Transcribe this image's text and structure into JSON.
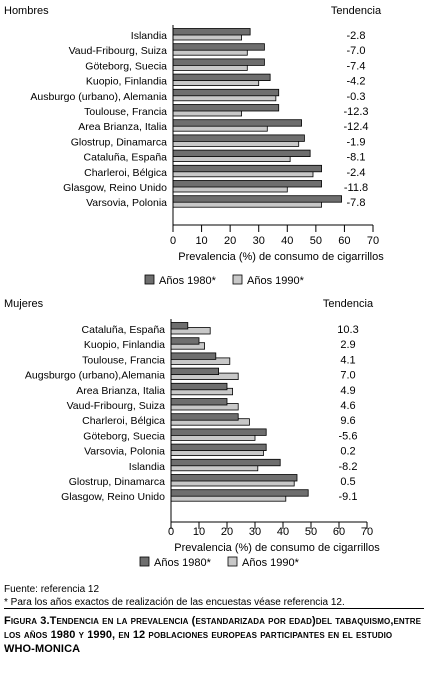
{
  "colors": {
    "bar1980": "#6e6e6e",
    "bar1990": "#c8c8c8",
    "stroke": "#000000"
  },
  "chart_data": [
    {
      "type": "bar",
      "orientation": "horizontal",
      "panel_label": "Hombres",
      "trend_header": "Tendencia",
      "categories": [
        "Islandia",
        "Vaud-Fribourg, Suiza",
        "Göteborg, Suecia",
        "Kuopio, Finlandia",
        "Ausburgo (urbano), Alemania",
        "Toulouse, Francia",
        "Area Brianza, Italia",
        "Glostrup, Dinamarca",
        "Cataluña, España",
        "Charleroi, Bélgica",
        "Glasgow, Reino Unido",
        "Varsovia, Polonia"
      ],
      "series": [
        {
          "name": "Años 1980*",
          "values": [
            27,
            32,
            32,
            34,
            37,
            37,
            45,
            46,
            48,
            52,
            52,
            59
          ]
        },
        {
          "name": "Años 1990*",
          "values": [
            24,
            26,
            26,
            30,
            36,
            24,
            33,
            44,
            41,
            49,
            40,
            52
          ]
        }
      ],
      "trend": [
        "-2.8",
        "-7.0",
        "-7.4",
        "-4.2",
        "-0.3",
        "-12.3",
        "-12.4",
        "-1.9",
        "-8.1",
        "-2.4",
        "-11.8",
        "-7.8"
      ],
      "xlabel": "Prevalencia (%) de consumo de cigarrillos",
      "xlim": [
        0,
        70
      ],
      "xticks": [
        0,
        10,
        20,
        30,
        40,
        50,
        60,
        70
      ],
      "legend": [
        "Años 1980*",
        "Años 1990*"
      ],
      "legend_position": "bottom"
    },
    {
      "type": "bar",
      "orientation": "horizontal",
      "panel_label": "Mujeres",
      "trend_header": "Tendencia",
      "categories": [
        "Cataluña, España",
        "Kuopio, Finlandia",
        "Toulouse, Francia",
        "Augsburgo (urbano),Alemania",
        "Area Brianza, Italia",
        "Vaud-Fribourg, Suiza",
        "Charleroi, Bélgica",
        "Göteborg, Suecia",
        "Varsovia, Polonia",
        "Islandia",
        "Glostrup, Dinamarca",
        "Glasgow, Reino Unido"
      ],
      "series": [
        {
          "name": "Años 1980*",
          "values": [
            6,
            10,
            16,
            17,
            20,
            20,
            24,
            34,
            34,
            39,
            45,
            49
          ]
        },
        {
          "name": "Años 1990*",
          "values": [
            14,
            12,
            21,
            24,
            22,
            24,
            28,
            30,
            33,
            31,
            44,
            41
          ]
        }
      ],
      "trend": [
        "10.3",
        "2.9",
        "4.1",
        "7.0",
        "4.9",
        "4.6",
        "9.6",
        "-5.6",
        "0.2",
        "-8.2",
        "0.5",
        "-9.1"
      ],
      "xlabel": "Prevalencia (%) de consumo de cigarrillos",
      "xlim": [
        0,
        70
      ],
      "xticks": [
        0,
        10,
        20,
        30,
        40,
        50,
        60,
        70
      ],
      "legend": [
        "Años 1980*",
        "Años 1990*"
      ],
      "legend_position": "bottom"
    }
  ],
  "notes": {
    "source": "Fuente: referencia 12",
    "footnote": "* Para los años exactos de realización de las encuestas véase referencia 12."
  },
  "caption": "Figura 3.Tendencia en la prevalencia (estandarizada por edad)del tabaquismo,entre los años 1980 y 1990, en 12 poblaciones europeas participantes en el estudio WHO-MONICA"
}
